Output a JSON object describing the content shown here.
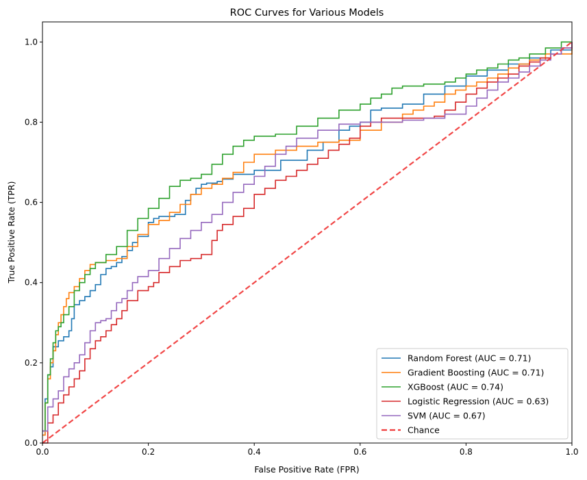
{
  "chart_data": {
    "type": "line",
    "title": "ROC Curves for Various Models",
    "xlabel": "False Positive Rate (FPR)",
    "ylabel": "True Positive Rate (TPR)",
    "xlim": [
      0.0,
      1.0
    ],
    "ylim": [
      0.0,
      1.05
    ],
    "xticks": [
      0.0,
      0.2,
      0.4,
      0.6,
      0.8,
      1.0
    ],
    "yticks": [
      0.0,
      0.2,
      0.4,
      0.6,
      0.8,
      1.0
    ],
    "xtick_labels": [
      "0.0",
      "0.2",
      "0.4",
      "0.6",
      "0.8",
      "1.0"
    ],
    "ytick_labels": [
      "0.0",
      "0.2",
      "0.4",
      "0.6",
      "0.8",
      "1.0"
    ],
    "grid": false,
    "legend_position": "lower-right",
    "series": [
      {
        "name": "Random Forest (AUC = 0.71)",
        "color": "#1f77b4",
        "style": "solid",
        "x": [
          0,
          0.005,
          0.01,
          0.015,
          0.02,
          0.03,
          0.04,
          0.05,
          0.055,
          0.06,
          0.07,
          0.08,
          0.09,
          0.1,
          0.11,
          0.12,
          0.13,
          0.14,
          0.15,
          0.16,
          0.17,
          0.18,
          0.2,
          0.21,
          0.22,
          0.25,
          0.27,
          0.28,
          0.29,
          0.3,
          0.31,
          0.33,
          0.34,
          0.36,
          0.4,
          0.45,
          0.5,
          0.53,
          0.56,
          0.58,
          0.6,
          0.62,
          0.64,
          0.68,
          0.72,
          0.76,
          0.8,
          0.84,
          0.88,
          0.92,
          0.96,
          1.0
        ],
        "y": [
          0.02,
          0.11,
          0.17,
          0.19,
          0.24,
          0.255,
          0.265,
          0.28,
          0.31,
          0.345,
          0.355,
          0.365,
          0.38,
          0.395,
          0.42,
          0.435,
          0.44,
          0.45,
          0.465,
          0.48,
          0.5,
          0.515,
          0.55,
          0.56,
          0.565,
          0.57,
          0.605,
          0.62,
          0.635,
          0.645,
          0.648,
          0.652,
          0.658,
          0.67,
          0.68,
          0.705,
          0.73,
          0.75,
          0.78,
          0.79,
          0.8,
          0.83,
          0.835,
          0.845,
          0.87,
          0.89,
          0.915,
          0.93,
          0.945,
          0.96,
          0.98,
          1.0
        ]
      },
      {
        "name": "Gradient Boosting (AUC = 0.71)",
        "color": "#ff7f0e",
        "style": "solid",
        "x": [
          0,
          0.005,
          0.01,
          0.015,
          0.02,
          0.025,
          0.03,
          0.035,
          0.04,
          0.045,
          0.05,
          0.06,
          0.07,
          0.08,
          0.09,
          0.1,
          0.12,
          0.14,
          0.16,
          0.18,
          0.2,
          0.22,
          0.24,
          0.26,
          0.28,
          0.3,
          0.32,
          0.34,
          0.36,
          0.38,
          0.4,
          0.44,
          0.48,
          0.52,
          0.56,
          0.6,
          0.64,
          0.68,
          0.7,
          0.72,
          0.74,
          0.76,
          0.78,
          0.8,
          0.82,
          0.84,
          0.86,
          0.88,
          0.9,
          0.92,
          0.95,
          1.0
        ],
        "y": [
          0.02,
          0.1,
          0.16,
          0.2,
          0.23,
          0.27,
          0.3,
          0.32,
          0.34,
          0.36,
          0.375,
          0.39,
          0.41,
          0.43,
          0.445,
          0.45,
          0.455,
          0.46,
          0.49,
          0.52,
          0.545,
          0.555,
          0.575,
          0.595,
          0.62,
          0.635,
          0.645,
          0.66,
          0.675,
          0.7,
          0.72,
          0.73,
          0.74,
          0.75,
          0.755,
          0.78,
          0.8,
          0.82,
          0.83,
          0.84,
          0.85,
          0.87,
          0.88,
          0.89,
          0.9,
          0.91,
          0.92,
          0.935,
          0.945,
          0.955,
          0.97,
          1.0
        ]
      },
      {
        "name": "XGBoost (AUC = 0.74)",
        "color": "#2ca02c",
        "style": "solid",
        "x": [
          0,
          0.005,
          0.01,
          0.015,
          0.02,
          0.025,
          0.03,
          0.035,
          0.04,
          0.05,
          0.06,
          0.07,
          0.08,
          0.09,
          0.1,
          0.12,
          0.14,
          0.16,
          0.18,
          0.2,
          0.22,
          0.24,
          0.26,
          0.28,
          0.3,
          0.32,
          0.34,
          0.36,
          0.38,
          0.4,
          0.44,
          0.48,
          0.52,
          0.56,
          0.6,
          0.62,
          0.64,
          0.66,
          0.68,
          0.72,
          0.76,
          0.78,
          0.8,
          0.82,
          0.84,
          0.86,
          0.88,
          0.9,
          0.92,
          0.95,
          0.98,
          1.0
        ],
        "y": [
          0.03,
          0.1,
          0.17,
          0.21,
          0.25,
          0.28,
          0.29,
          0.3,
          0.32,
          0.34,
          0.38,
          0.4,
          0.42,
          0.435,
          0.45,
          0.47,
          0.49,
          0.53,
          0.56,
          0.585,
          0.61,
          0.64,
          0.655,
          0.66,
          0.67,
          0.695,
          0.72,
          0.74,
          0.755,
          0.765,
          0.77,
          0.79,
          0.81,
          0.83,
          0.845,
          0.86,
          0.87,
          0.885,
          0.89,
          0.895,
          0.9,
          0.91,
          0.92,
          0.93,
          0.935,
          0.945,
          0.955,
          0.96,
          0.97,
          0.985,
          1.0,
          1.0
        ]
      },
      {
        "name": "Logistic Regression (AUC = 0.63)",
        "color": "#d62728",
        "style": "solid",
        "x": [
          0,
          0.01,
          0.02,
          0.03,
          0.04,
          0.05,
          0.06,
          0.07,
          0.08,
          0.09,
          0.1,
          0.11,
          0.12,
          0.13,
          0.14,
          0.15,
          0.16,
          0.18,
          0.2,
          0.21,
          0.22,
          0.24,
          0.26,
          0.28,
          0.3,
          0.32,
          0.33,
          0.34,
          0.36,
          0.38,
          0.4,
          0.42,
          0.44,
          0.46,
          0.48,
          0.5,
          0.52,
          0.54,
          0.56,
          0.58,
          0.6,
          0.62,
          0.64,
          0.66,
          0.7,
          0.74,
          0.76,
          0.78,
          0.8,
          0.82,
          0.84,
          0.86,
          0.88,
          0.9,
          0.92,
          0.94,
          0.96,
          0.98,
          1.0
        ],
        "y": [
          0.0,
          0.05,
          0.07,
          0.1,
          0.12,
          0.14,
          0.16,
          0.18,
          0.21,
          0.235,
          0.255,
          0.265,
          0.28,
          0.295,
          0.31,
          0.33,
          0.355,
          0.38,
          0.39,
          0.4,
          0.425,
          0.44,
          0.455,
          0.46,
          0.47,
          0.505,
          0.53,
          0.545,
          0.565,
          0.585,
          0.62,
          0.635,
          0.655,
          0.665,
          0.68,
          0.695,
          0.71,
          0.73,
          0.745,
          0.76,
          0.79,
          0.8,
          0.81,
          0.81,
          0.81,
          0.815,
          0.83,
          0.85,
          0.87,
          0.885,
          0.9,
          0.91,
          0.92,
          0.94,
          0.95,
          0.96,
          0.97,
          0.985,
          1.0
        ]
      },
      {
        "name": "SVM (AUC = 0.67)",
        "color": "#9467bd",
        "style": "solid",
        "x": [
          0,
          0.01,
          0.02,
          0.03,
          0.04,
          0.05,
          0.06,
          0.07,
          0.08,
          0.09,
          0.1,
          0.11,
          0.12,
          0.13,
          0.14,
          0.15,
          0.16,
          0.17,
          0.18,
          0.2,
          0.22,
          0.24,
          0.26,
          0.28,
          0.3,
          0.32,
          0.34,
          0.36,
          0.38,
          0.4,
          0.42,
          0.44,
          0.46,
          0.48,
          0.52,
          0.56,
          0.6,
          0.64,
          0.68,
          0.72,
          0.76,
          0.8,
          0.82,
          0.84,
          0.86,
          0.88,
          0.9,
          0.92,
          0.94,
          0.96,
          0.98,
          1.0
        ],
        "y": [
          0.03,
          0.09,
          0.11,
          0.13,
          0.165,
          0.185,
          0.2,
          0.22,
          0.25,
          0.28,
          0.3,
          0.305,
          0.31,
          0.33,
          0.35,
          0.36,
          0.38,
          0.4,
          0.415,
          0.43,
          0.46,
          0.485,
          0.51,
          0.53,
          0.55,
          0.57,
          0.6,
          0.625,
          0.645,
          0.665,
          0.69,
          0.72,
          0.74,
          0.76,
          0.78,
          0.795,
          0.8,
          0.8,
          0.805,
          0.81,
          0.82,
          0.84,
          0.86,
          0.88,
          0.9,
          0.91,
          0.925,
          0.94,
          0.955,
          0.97,
          0.985,
          1.0
        ]
      },
      {
        "name": "Chance",
        "color": "#f03c3c",
        "style": "dashed",
        "x": [
          0,
          1
        ],
        "y": [
          0,
          1
        ]
      }
    ]
  }
}
